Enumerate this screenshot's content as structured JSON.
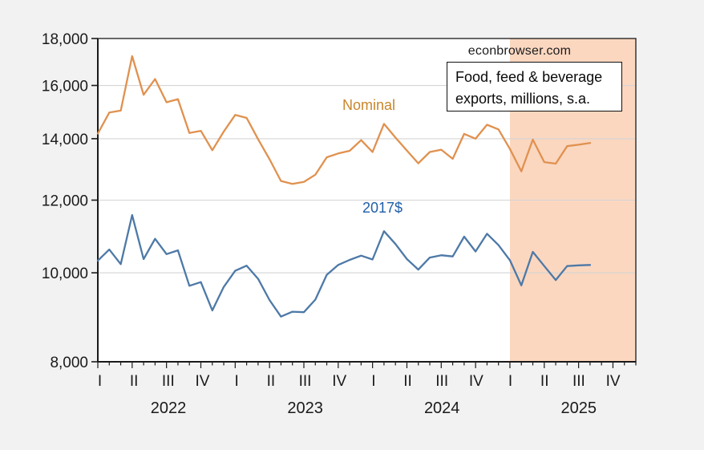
{
  "header": {
    "watermark": "econbrowser.com",
    "note_line1": "Food, feed & beverage",
    "note_line2": "exports, millions, s.a."
  },
  "chart_data": {
    "type": "line",
    "title": "Food, feed & beverage exports, millions, s.a.",
    "source_watermark": "econbrowser.com",
    "frequency": "monthly",
    "x_start": "2022-01",
    "x_axis_end": "2025-12",
    "n_axis_months": 48,
    "y_scale": "log",
    "ylim": [
      8000,
      18000
    ],
    "yticks": [
      8000,
      10000,
      12000,
      14000,
      16000,
      18000
    ],
    "ytick_labels": [
      "8,000",
      "10,000",
      "12,000",
      "14,000",
      "16,000",
      "18,000"
    ],
    "x_quarter_labels": [
      "I",
      "II",
      "III",
      "IV",
      "I",
      "II",
      "III",
      "IV",
      "I",
      "II",
      "III",
      "IV",
      "I",
      "II",
      "III",
      "IV"
    ],
    "x_year_labels": [
      "2022",
      "2023",
      "2024",
      "2025"
    ],
    "grid": "horizontal",
    "background": "#F2F2F2",
    "plot_background": "#FFFFFF",
    "gridline_color": "#D4D4D4",
    "axis_color": "#1A1A1A",
    "highlight_region": {
      "start_month_index": 36,
      "start": "2025-01",
      "end": "2025-12",
      "color": "#FBD7C0"
    },
    "series": [
      {
        "name": "Nominal",
        "color": "#E0914F",
        "label_color": "#C8862B",
        "values": [
          14180,
          14950,
          15020,
          17220,
          15630,
          16260,
          15340,
          15460,
          14200,
          14280,
          13600,
          14250,
          14860,
          14750,
          13980,
          13300,
          12590,
          12500,
          12560,
          12790,
          13360,
          13490,
          13580,
          13950,
          13540,
          14530,
          14040,
          13590,
          13160,
          13540,
          13620,
          13310,
          14170,
          14000,
          14500,
          14330,
          13640,
          12900,
          13970,
          13200,
          13150,
          13740,
          13790,
          13850
        ]
      },
      {
        "name": "2017$",
        "color": "#4D79A7",
        "label_color": "#1F5FA8",
        "values": [
          10310,
          10600,
          10220,
          11560,
          10350,
          10890,
          10480,
          10580,
          9680,
          9770,
          9100,
          9650,
          10050,
          10180,
          9850,
          9340,
          8960,
          9070,
          9060,
          9350,
          9950,
          10200,
          10330,
          10440,
          10340,
          11100,
          10750,
          10350,
          10080,
          10390,
          10450,
          10420,
          10950,
          10550,
          11030,
          10720,
          10320,
          9690,
          10540,
          10170,
          9820,
          10170,
          10190,
          10200
        ]
      }
    ]
  }
}
